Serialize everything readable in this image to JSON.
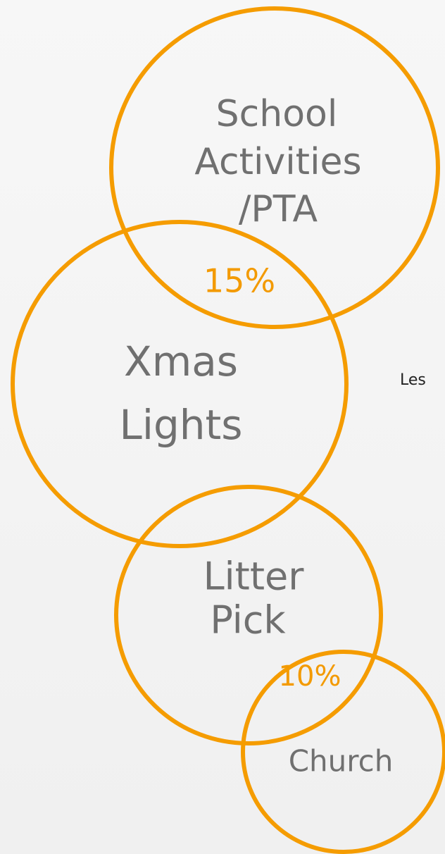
{
  "nodes": [
    {
      "lines": [
        "School",
        "Activities",
        "/PTA"
      ],
      "share": "15%"
    },
    {
      "lines": [
        "Xmas",
        "Lights"
      ]
    },
    {
      "lines": [
        "Litter",
        "Pick"
      ],
      "share": "10%"
    },
    {
      "lines": [
        "Church"
      ]
    }
  ],
  "side_text": "Les"
}
